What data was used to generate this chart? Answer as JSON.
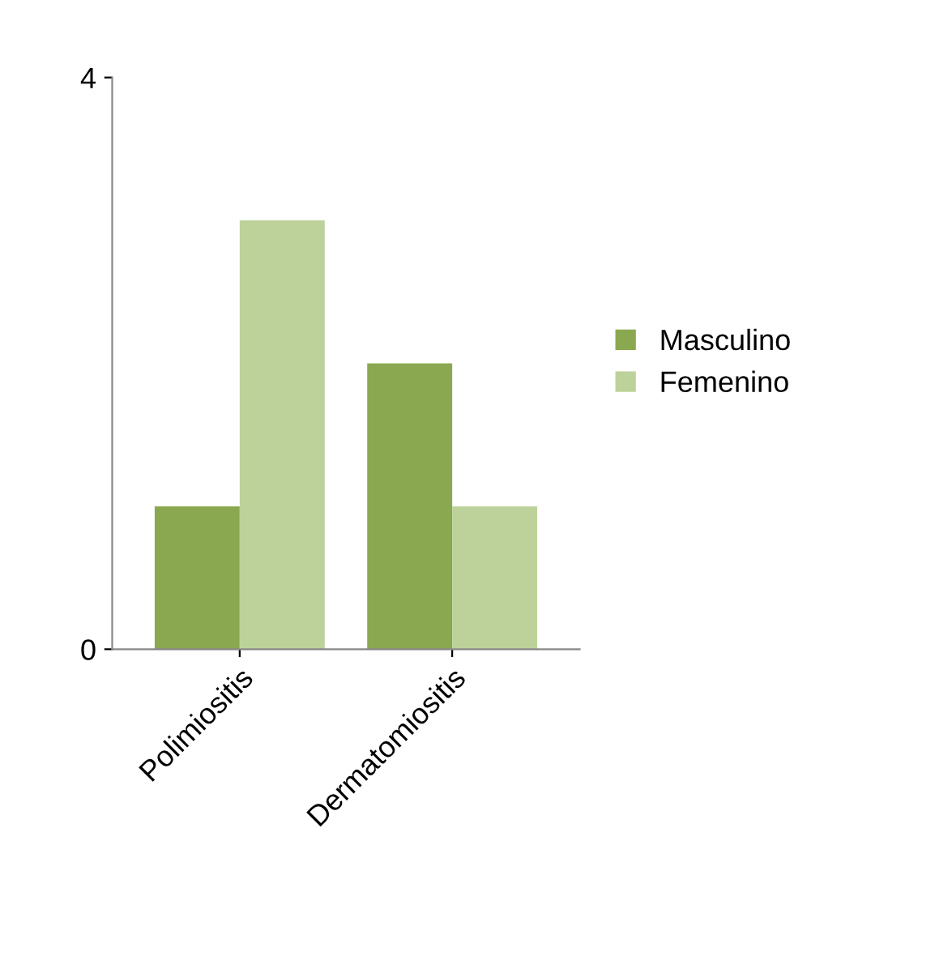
{
  "chart_data": {
    "type": "bar",
    "categories": [
      "Polimiositis",
      "Dermatomiositis"
    ],
    "series": [
      {
        "name": "Masculino",
        "color": "#8aa84f",
        "values": [
          1,
          2
        ]
      },
      {
        "name": "Femenino",
        "color": "#bcd29a",
        "values": [
          3,
          1
        ]
      }
    ],
    "ylim": [
      0,
      4
    ],
    "yticks": [
      0,
      4
    ],
    "grid": false,
    "legend": "right"
  }
}
